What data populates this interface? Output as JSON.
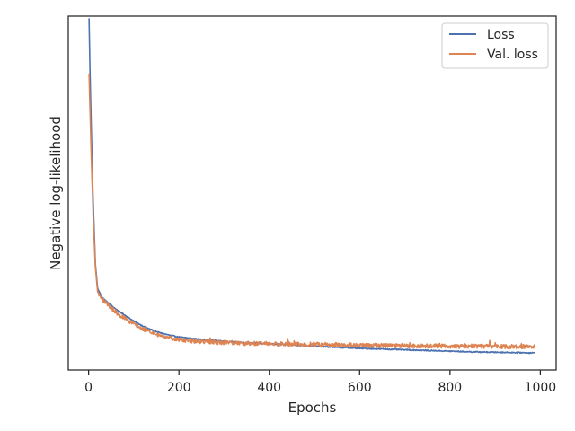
{
  "chart_data": {
    "type": "line",
    "title": "",
    "xlabel": "Epochs",
    "ylabel": "Negative log-likelihood",
    "xlim": [
      -45,
      1035
    ],
    "ylim": [
      0,
      1
    ],
    "x_ticks": [
      0,
      200,
      400,
      600,
      800,
      1000
    ],
    "y_ticks_visible": false,
    "grid": false,
    "legend_position": "top-right",
    "series": [
      {
        "name": "Loss",
        "color": "#4c72b0",
        "noise": 0.0015,
        "points": [
          [
            1,
            0.994
          ],
          [
            3,
            0.85
          ],
          [
            6,
            0.68
          ],
          [
            10,
            0.48
          ],
          [
            15,
            0.3
          ],
          [
            20,
            0.23
          ],
          [
            30,
            0.205
          ],
          [
            40,
            0.193
          ],
          [
            50,
            0.183
          ],
          [
            60,
            0.172
          ],
          [
            80,
            0.155
          ],
          [
            100,
            0.138
          ],
          [
            120,
            0.124
          ],
          [
            140,
            0.113
          ],
          [
            160,
            0.104
          ],
          [
            180,
            0.098
          ],
          [
            200,
            0.093
          ],
          [
            250,
            0.086
          ],
          [
            300,
            0.081
          ],
          [
            350,
            0.077
          ],
          [
            400,
            0.074
          ],
          [
            450,
            0.071
          ],
          [
            500,
            0.067
          ],
          [
            550,
            0.064
          ],
          [
            600,
            0.061
          ],
          [
            650,
            0.059
          ],
          [
            700,
            0.057
          ],
          [
            750,
            0.055
          ],
          [
            800,
            0.053
          ],
          [
            850,
            0.051
          ],
          [
            900,
            0.05
          ],
          [
            950,
            0.049
          ],
          [
            988,
            0.048
          ]
        ]
      },
      {
        "name": "Val. loss",
        "color": "#dd8452",
        "noise": 0.006,
        "points": [
          [
            1,
            0.838
          ],
          [
            3,
            0.74
          ],
          [
            6,
            0.6
          ],
          [
            10,
            0.44
          ],
          [
            15,
            0.29
          ],
          [
            20,
            0.22
          ],
          [
            30,
            0.2
          ],
          [
            40,
            0.187
          ],
          [
            50,
            0.176
          ],
          [
            60,
            0.164
          ],
          [
            80,
            0.146
          ],
          [
            100,
            0.13
          ],
          [
            120,
            0.117
          ],
          [
            140,
            0.106
          ],
          [
            160,
            0.097
          ],
          [
            180,
            0.09
          ],
          [
            200,
            0.085
          ],
          [
            250,
            0.08
          ],
          [
            300,
            0.077
          ],
          [
            350,
            0.075
          ],
          [
            400,
            0.074
          ],
          [
            450,
            0.073
          ],
          [
            500,
            0.072
          ],
          [
            550,
            0.071
          ],
          [
            600,
            0.07
          ],
          [
            650,
            0.069
          ],
          [
            700,
            0.068
          ],
          [
            750,
            0.068
          ],
          [
            800,
            0.067
          ],
          [
            850,
            0.067
          ],
          [
            900,
            0.066
          ],
          [
            950,
            0.066
          ],
          [
            988,
            0.066
          ]
        ]
      }
    ]
  }
}
